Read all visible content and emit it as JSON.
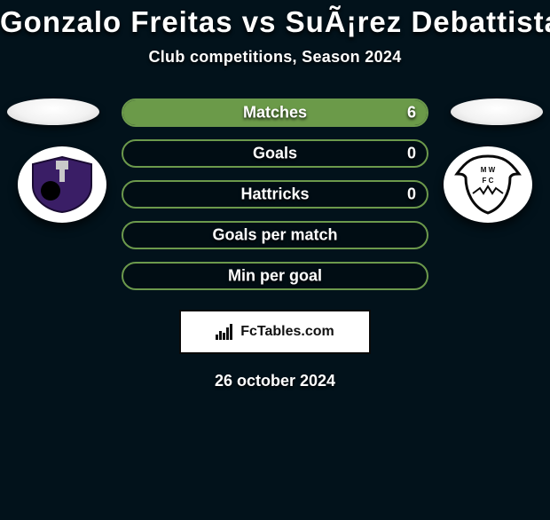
{
  "header": {
    "title": "Gonzalo Freitas vs SuÃ¡rez Debattista",
    "title_fontsize": 33,
    "title_color": "#ffffff",
    "subtitle": "Club competitions, Season 2024",
    "subtitle_fontsize": 18
  },
  "colors": {
    "background": "#02121b",
    "bar_border": "#6c994c",
    "bar_fill": "#6b9a49",
    "bar_empty": "rgba(0,0,0,0.25)",
    "text": "#ffffff"
  },
  "bars": {
    "label_fontsize": 18,
    "value_fontsize": 18,
    "items": [
      {
        "label": "Matches",
        "left_value": "",
        "right_value": "6",
        "fill_side": "right",
        "fill_pct": 100
      },
      {
        "label": "Goals",
        "left_value": "",
        "right_value": "0",
        "fill_side": "none",
        "fill_pct": 0
      },
      {
        "label": "Hattricks",
        "left_value": "",
        "right_value": "0",
        "fill_side": "none",
        "fill_pct": 0
      },
      {
        "label": "Goals per match",
        "left_value": "",
        "right_value": "",
        "fill_side": "none",
        "fill_pct": 0
      },
      {
        "label": "Min per goal",
        "left_value": "",
        "right_value": "",
        "fill_side": "none",
        "fill_pct": 0
      }
    ]
  },
  "logos": {
    "left_name": "defensor-sporting-crest",
    "right_name": "montevideo-wanderers-crest"
  },
  "branding": {
    "label": "FcTables.com",
    "icon": "bar-chart-icon"
  },
  "date": {
    "text": "26 october 2024",
    "fontsize": 18
  }
}
